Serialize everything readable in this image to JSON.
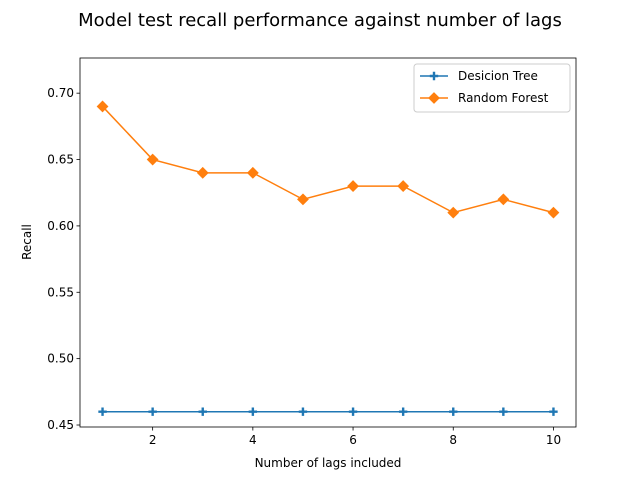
{
  "chart_data": {
    "type": "line",
    "title": "Model test recall performance against number of lags",
    "xlabel": "Number of lags included",
    "ylabel": "Recall",
    "x": [
      1,
      2,
      3,
      4,
      5,
      6,
      7,
      8,
      9,
      10
    ],
    "xlim": [
      0.55,
      10.45
    ],
    "ylim": [
      0.4485,
      0.7265
    ],
    "xticks": [
      2,
      4,
      6,
      8,
      10
    ],
    "yticks": [
      0.45,
      0.5,
      0.55,
      0.6,
      0.65,
      0.7
    ],
    "xtick_labels": [
      "2",
      "4",
      "6",
      "8",
      "10"
    ],
    "ytick_labels": [
      "0.45",
      "0.50",
      "0.55",
      "0.60",
      "0.65",
      "0.70"
    ],
    "grid": false,
    "legend_position": "top-right",
    "series": [
      {
        "name": "Desicion Tree",
        "color": "#1f77b4",
        "marker": "plus",
        "values": [
          0.46,
          0.46,
          0.46,
          0.46,
          0.46,
          0.46,
          0.46,
          0.46,
          0.46,
          0.46
        ]
      },
      {
        "name": "Random Forest",
        "color": "#ff7f0e",
        "marker": "diamond",
        "values": [
          0.69,
          0.65,
          0.64,
          0.64,
          0.62,
          0.63,
          0.63,
          0.61,
          0.62,
          0.61
        ]
      }
    ]
  }
}
